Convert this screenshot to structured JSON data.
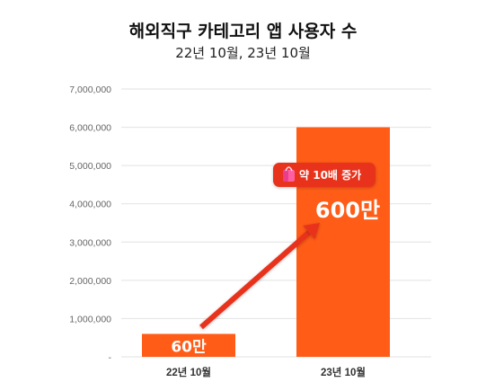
{
  "chart_data": {
    "type": "bar",
    "title": "해외직구 카테고리 앱 사용자 수",
    "subtitle": "22년 10월, 23년 10월",
    "categories": [
      "22년 10월",
      "23년 10월"
    ],
    "values": [
      600000,
      6000000
    ],
    "data_labels": [
      "60만",
      "600만"
    ],
    "ylim": [
      0,
      7000000
    ],
    "yticks": [
      "-",
      "1,000,000",
      "2,000,000",
      "3,000,000",
      "4,000,000",
      "5,000,000",
      "6,000,000",
      "7,000,000"
    ],
    "grid": true,
    "annotation": "약 10배 증가",
    "annotation_icon": "shopping-bag-icon",
    "colors": {
      "bar": "#FF5C17",
      "arrow": "#E8331C",
      "badge": "#E8331C",
      "grid": "#E2E2E2"
    }
  }
}
